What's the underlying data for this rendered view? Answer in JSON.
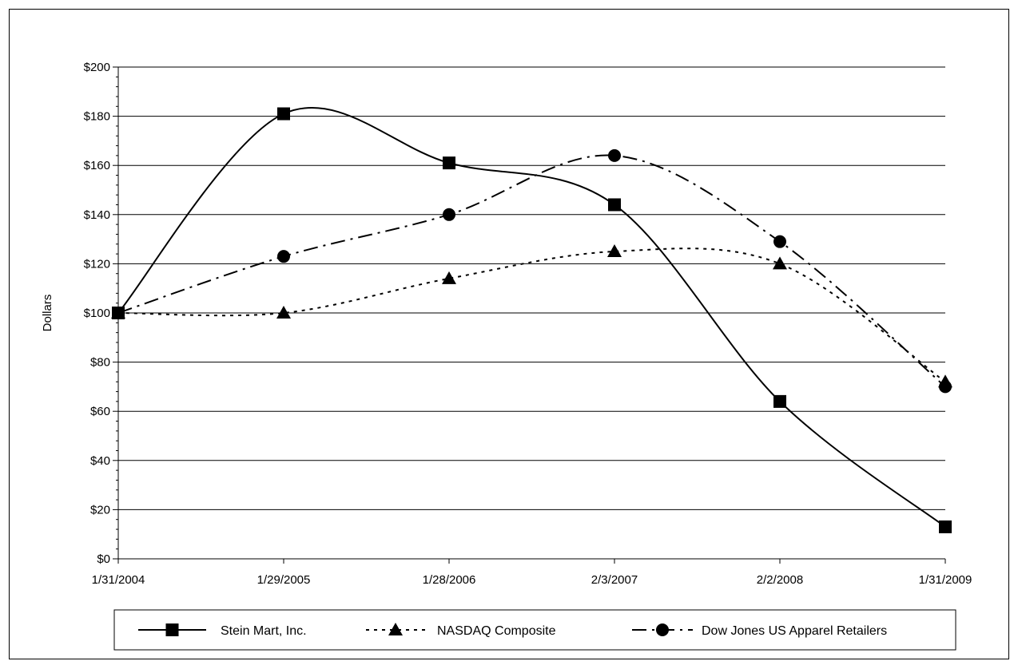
{
  "chart_data": {
    "type": "line",
    "title": "",
    "xlabel": "",
    "ylabel": "Dollars",
    "categories": [
      "1/31/2004",
      "1/29/2005",
      "1/28/2006",
      "2/3/2007",
      "2/2/2008",
      "1/31/2009"
    ],
    "ylim": [
      0,
      200
    ],
    "yticks": [
      "$0",
      "$20",
      "$40",
      "$60",
      "$80",
      "$100",
      "$120",
      "$140",
      "$160",
      "$180",
      "$200"
    ],
    "grid": "horizontal",
    "legend_position": "bottom",
    "smooth": true,
    "series": [
      {
        "name": "Stein Mart, Inc.",
        "values": [
          100,
          181,
          161,
          144,
          64,
          13
        ],
        "marker": "square",
        "dash": "solid",
        "color": "#000000"
      },
      {
        "name": "NASDAQ Composite",
        "values": [
          100,
          100,
          114,
          125,
          120,
          72
        ],
        "marker": "triangle",
        "dash": "dotted",
        "color": "#000000"
      },
      {
        "name": "Dow Jones US Apparel Retailers",
        "values": [
          100,
          123,
          140,
          164,
          129,
          70
        ],
        "marker": "circle",
        "dash": "dashdot",
        "color": "#000000"
      }
    ]
  }
}
